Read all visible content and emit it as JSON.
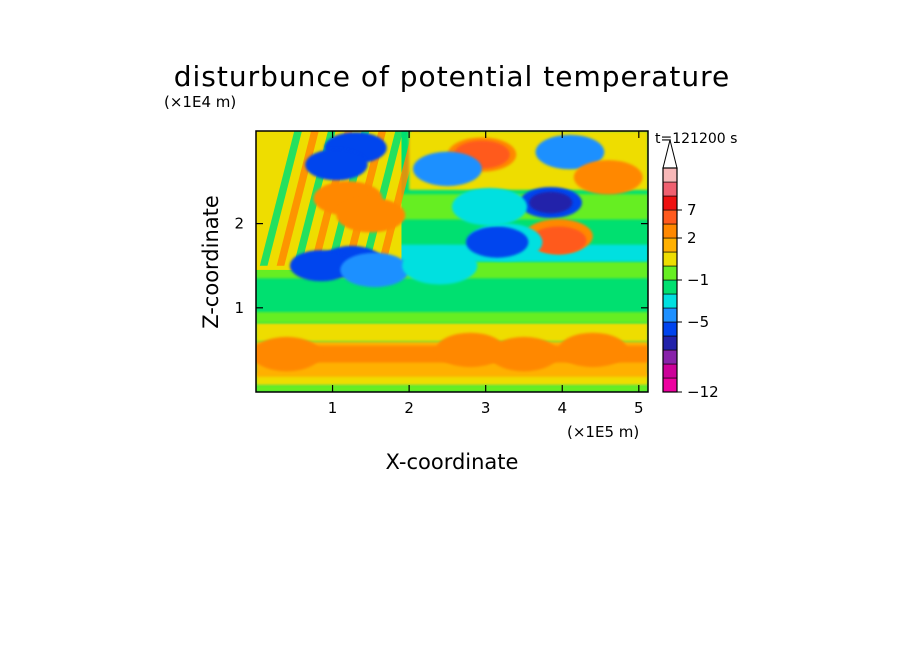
{
  "chart_data": {
    "type": "heatmap",
    "title": "disturbunce of potential temperature",
    "xlabel": "X-coordinate",
    "ylabel": "Z-coordinate",
    "x_unit": "(×1E5 m)",
    "y_unit": "(×1E4 m)",
    "time_label": "t=121200 s",
    "xlim": [
      0,
      5.12
    ],
    "ylim": [
      0,
      3.1
    ],
    "xticks": [
      {
        "value": 1,
        "label": "1"
      },
      {
        "value": 2,
        "label": "2"
      },
      {
        "value": 3,
        "label": "3"
      },
      {
        "value": 4,
        "label": "4"
      },
      {
        "value": 5,
        "label": "5"
      }
    ],
    "yticks": [
      {
        "value": 1,
        "label": "1"
      },
      {
        "value": 2,
        "label": "2"
      }
    ],
    "colorbar": {
      "colors": [
        "#ee00a0",
        "#cc0099",
        "#8822aa",
        "#2222aa",
        "#0044ee",
        "#1e90ff",
        "#00e0e0",
        "#00e070",
        "#66ee22",
        "#eedd00",
        "#ffb000",
        "#ff8800",
        "#ff5a1e",
        "#ee1111",
        "#f06070",
        "#f8b8b8",
        "#ffffff"
      ],
      "labels": [
        {
          "text": "7",
          "index": 13
        },
        {
          "text": "2",
          "index": 11
        },
        {
          "text": "−1",
          "index": 8
        },
        {
          "text": "−5",
          "index": 5
        },
        {
          "text": "−12",
          "index": 0
        }
      ]
    },
    "features": [
      {
        "x": 2.95,
        "z": 2.82,
        "value": 3
      },
      {
        "x": 2.95,
        "z": 2.82,
        "value": 5
      },
      {
        "x": 3.85,
        "z": 2.25,
        "value": -4
      },
      {
        "x": 3.85,
        "z": 2.25,
        "value": -7
      },
      {
        "x": 3.95,
        "z": 1.85,
        "value": 3
      },
      {
        "x": 3.95,
        "z": 1.8,
        "value": 5
      },
      {
        "x": 3.25,
        "z": 1.78,
        "value": -2
      },
      {
        "x": 3.15,
        "z": 1.78,
        "value": -4
      },
      {
        "x": 4.1,
        "z": 2.85,
        "value": -3
      },
      {
        "x": 3.05,
        "z": 2.2,
        "value": -2
      },
      {
        "x": 4.6,
        "z": 2.55,
        "value": 3
      },
      {
        "x": 2.5,
        "z": 2.65,
        "value": -3
      },
      {
        "x": 1.2,
        "z": 2.3,
        "value": 3
      },
      {
        "x": 1.5,
        "z": 2.1,
        "value": 3
      },
      {
        "x": 1.3,
        "z": 2.9,
        "value": -4
      },
      {
        "x": 1.05,
        "z": 2.7,
        "value": -4
      },
      {
        "x": 1.25,
        "z": 1.55,
        "value": -4
      },
      {
        "x": 0.85,
        "z": 1.5,
        "value": -4
      },
      {
        "x": 1.55,
        "z": 1.45,
        "value": -3
      },
      {
        "x": 2.4,
        "z": 1.5,
        "value": -2
      },
      {
        "x": 3.5,
        "z": 0.45,
        "value": 3
      },
      {
        "x": 2.8,
        "z": 0.5,
        "value": 3
      },
      {
        "x": 0.4,
        "z": 0.45,
        "value": 3
      },
      {
        "x": 4.4,
        "z": 0.5,
        "value": 3
      }
    ]
  }
}
